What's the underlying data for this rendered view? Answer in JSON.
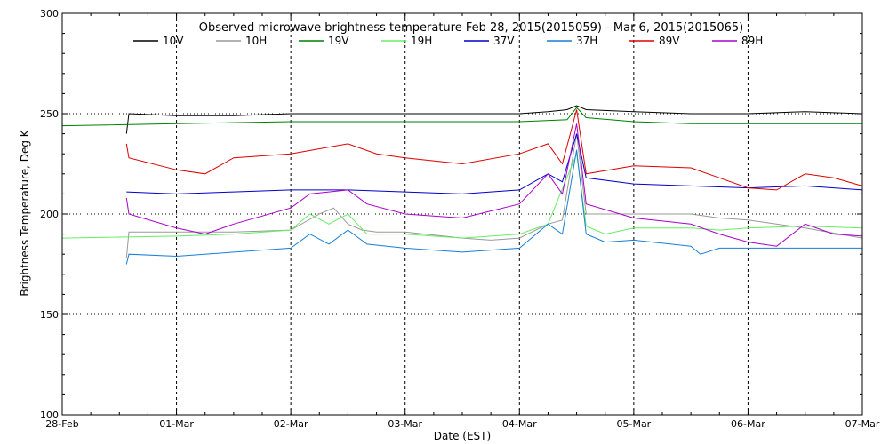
{
  "chart_data": {
    "type": "line",
    "title": "Observed microwave brightness temperature Feb 28, 2015(2015059) - Mar  6, 2015(2015065)",
    "xlabel": "Date (EST)",
    "ylabel": "Brightness Temperature, Deg K",
    "xlim": [
      "2015-02-28",
      "2015-03-07"
    ],
    "ylim": [
      100,
      300
    ],
    "x_ticks": [
      {
        "date": "2015-02-28",
        "label": "28-Feb"
      },
      {
        "date": "2015-03-01",
        "label": "01-Mar"
      },
      {
        "date": "2015-03-02",
        "label": "02-Mar"
      },
      {
        "date": "2015-03-03",
        "label": "03-Mar"
      },
      {
        "date": "2015-03-04",
        "label": "04-Mar"
      },
      {
        "date": "2015-03-05",
        "label": "05-Mar"
      },
      {
        "date": "2015-03-06",
        "label": "06-Mar"
      },
      {
        "date": "2015-03-07",
        "label": "07-Mar"
      }
    ],
    "y_ticks": [
      100,
      150,
      200,
      250,
      300
    ],
    "grid": "dotted",
    "legend_position": "top",
    "series": [
      {
        "name": "10V",
        "color": "#000000",
        "points": [
          [
            "2015-02-28T13:30",
            240
          ],
          [
            "2015-02-28T14:00",
            250
          ],
          [
            "2015-03-01T00:00",
            249
          ],
          [
            "2015-03-01T12:00",
            249
          ],
          [
            "2015-03-02T00:00",
            250
          ],
          [
            "2015-03-02T12:00",
            250
          ],
          [
            "2015-03-03T00:00",
            250
          ],
          [
            "2015-03-03T12:00",
            250
          ],
          [
            "2015-03-04T00:00",
            250
          ],
          [
            "2015-03-04T06:00",
            251
          ],
          [
            "2015-03-04T10:00",
            252
          ],
          [
            "2015-03-04T12:00",
            254
          ],
          [
            "2015-03-04T14:00",
            252
          ],
          [
            "2015-03-05T00:00",
            251
          ],
          [
            "2015-03-05T12:00",
            250
          ],
          [
            "2015-03-06T00:00",
            250
          ],
          [
            "2015-03-06T12:00",
            251
          ],
          [
            "2015-03-07T00:00",
            250
          ]
        ]
      },
      {
        "name": "10H",
        "color": "#999999",
        "points": [
          [
            "2015-02-28T13:30",
            178
          ],
          [
            "2015-02-28T14:00",
            191
          ],
          [
            "2015-03-01T00:00",
            191
          ],
          [
            "2015-03-01T12:00",
            191
          ],
          [
            "2015-03-02T00:00",
            192
          ],
          [
            "2015-03-02T03:00",
            196
          ],
          [
            "2015-03-02T06:00",
            200
          ],
          [
            "2015-03-02T09:00",
            203
          ],
          [
            "2015-03-02T12:00",
            195
          ],
          [
            "2015-03-02T15:00",
            192
          ],
          [
            "2015-03-02T18:00",
            191
          ],
          [
            "2015-03-03T00:00",
            191
          ],
          [
            "2015-03-03T12:00",
            188
          ],
          [
            "2015-03-03T18:00",
            187
          ],
          [
            "2015-03-04T00:00",
            188
          ],
          [
            "2015-03-04T06:00",
            195
          ],
          [
            "2015-03-04T09:00",
            197
          ],
          [
            "2015-03-04T12:00",
            240
          ],
          [
            "2015-03-04T14:00",
            200
          ],
          [
            "2015-03-04T18:00",
            200
          ],
          [
            "2015-03-05T00:00",
            200
          ],
          [
            "2015-03-05T12:00",
            200
          ],
          [
            "2015-03-05T18:00",
            198
          ],
          [
            "2015-03-06T00:00",
            197
          ],
          [
            "2015-03-06T12:00",
            193
          ],
          [
            "2015-03-07T00:00",
            188
          ]
        ]
      },
      {
        "name": "19V",
        "color": "#008000",
        "points": [
          [
            "2015-02-28T00:00",
            244
          ],
          [
            "2015-03-01T00:00",
            245
          ],
          [
            "2015-03-02T00:00",
            246
          ],
          [
            "2015-03-03T00:00",
            246
          ],
          [
            "2015-03-04T00:00",
            246
          ],
          [
            "2015-03-04T10:00",
            247
          ],
          [
            "2015-03-04T12:00",
            253
          ],
          [
            "2015-03-04T14:00",
            248
          ],
          [
            "2015-03-05T00:00",
            246
          ],
          [
            "2015-03-05T12:00",
            245
          ],
          [
            "2015-03-06T00:00",
            245
          ],
          [
            "2015-03-07T00:00",
            245
          ]
        ]
      },
      {
        "name": "19H",
        "color": "#66ee66",
        "points": [
          [
            "2015-02-28T00:00",
            188
          ],
          [
            "2015-03-01T00:00",
            189
          ],
          [
            "2015-03-01T12:00",
            190
          ],
          [
            "2015-03-02T00:00",
            192
          ],
          [
            "2015-03-02T04:00",
            200
          ],
          [
            "2015-03-02T08:00",
            195
          ],
          [
            "2015-03-02T12:00",
            200
          ],
          [
            "2015-03-02T16:00",
            190
          ],
          [
            "2015-03-03T00:00",
            190
          ],
          [
            "2015-03-03T12:00",
            188
          ],
          [
            "2015-03-04T00:00",
            190
          ],
          [
            "2015-03-04T06:00",
            195
          ],
          [
            "2015-03-04T12:00",
            230
          ],
          [
            "2015-03-04T14:00",
            194
          ],
          [
            "2015-03-04T18:00",
            190
          ],
          [
            "2015-03-05T00:00",
            193
          ],
          [
            "2015-03-05T12:00",
            193
          ],
          [
            "2015-03-05T18:00",
            192
          ],
          [
            "2015-03-06T00:00",
            193
          ],
          [
            "2015-03-06T12:00",
            194
          ],
          [
            "2015-03-07T00:00",
            193
          ]
        ]
      },
      {
        "name": "37V",
        "color": "#0000cc",
        "points": [
          [
            "2015-02-28T13:30",
            211
          ],
          [
            "2015-03-01T00:00",
            210
          ],
          [
            "2015-03-01T12:00",
            211
          ],
          [
            "2015-03-02T00:00",
            212
          ],
          [
            "2015-03-02T12:00",
            212
          ],
          [
            "2015-03-03T00:00",
            211
          ],
          [
            "2015-03-03T12:00",
            210
          ],
          [
            "2015-03-04T00:00",
            212
          ],
          [
            "2015-03-04T06:00",
            220
          ],
          [
            "2015-03-04T09:00",
            216
          ],
          [
            "2015-03-04T12:00",
            240
          ],
          [
            "2015-03-04T14:00",
            218
          ],
          [
            "2015-03-05T00:00",
            215
          ],
          [
            "2015-03-05T12:00",
            214
          ],
          [
            "2015-03-06T00:00",
            213
          ],
          [
            "2015-03-06T12:00",
            214
          ],
          [
            "2015-03-07T00:00",
            212
          ]
        ]
      },
      {
        "name": "37H",
        "color": "#1a7fd6",
        "points": [
          [
            "2015-02-28T13:30",
            175
          ],
          [
            "2015-02-28T14:00",
            180
          ],
          [
            "2015-03-01T00:00",
            179
          ],
          [
            "2015-03-01T12:00",
            181
          ],
          [
            "2015-03-02T00:00",
            183
          ],
          [
            "2015-03-02T04:00",
            190
          ],
          [
            "2015-03-02T08:00",
            185
          ],
          [
            "2015-03-02T12:00",
            192
          ],
          [
            "2015-03-02T16:00",
            185
          ],
          [
            "2015-03-03T00:00",
            183
          ],
          [
            "2015-03-03T12:00",
            181
          ],
          [
            "2015-03-04T00:00",
            183
          ],
          [
            "2015-03-04T06:00",
            195
          ],
          [
            "2015-03-04T09:00",
            190
          ],
          [
            "2015-03-04T12:00",
            232
          ],
          [
            "2015-03-04T14:00",
            190
          ],
          [
            "2015-03-04T18:00",
            186
          ],
          [
            "2015-03-05T00:00",
            187
          ],
          [
            "2015-03-05T12:00",
            184
          ],
          [
            "2015-03-05T14:00",
            180
          ],
          [
            "2015-03-05T18:00",
            183
          ],
          [
            "2015-03-06T00:00",
            183
          ],
          [
            "2015-03-06T12:00",
            183
          ],
          [
            "2015-03-07T00:00",
            183
          ]
        ]
      },
      {
        "name": "89V",
        "color": "#dd0000",
        "points": [
          [
            "2015-02-28T13:30",
            235
          ],
          [
            "2015-02-28T14:00",
            228
          ],
          [
            "2015-03-01T00:00",
            222
          ],
          [
            "2015-03-01T06:00",
            220
          ],
          [
            "2015-03-01T12:00",
            228
          ],
          [
            "2015-03-02T00:00",
            230
          ],
          [
            "2015-03-02T12:00",
            235
          ],
          [
            "2015-03-02T18:00",
            230
          ],
          [
            "2015-03-03T00:00",
            228
          ],
          [
            "2015-03-03T12:00",
            225
          ],
          [
            "2015-03-04T00:00",
            230
          ],
          [
            "2015-03-04T06:00",
            235
          ],
          [
            "2015-03-04T09:00",
            225
          ],
          [
            "2015-03-04T12:00",
            252
          ],
          [
            "2015-03-04T14:00",
            220
          ],
          [
            "2015-03-05T00:00",
            224
          ],
          [
            "2015-03-05T12:00",
            223
          ],
          [
            "2015-03-05T18:00",
            218
          ],
          [
            "2015-03-06T00:00",
            213
          ],
          [
            "2015-03-06T06:00",
            212
          ],
          [
            "2015-03-06T12:00",
            220
          ],
          [
            "2015-03-06T18:00",
            218
          ],
          [
            "2015-03-07T00:00",
            214
          ]
        ]
      },
      {
        "name": "89H",
        "color": "#aa00cc",
        "points": [
          [
            "2015-02-28T13:30",
            208
          ],
          [
            "2015-02-28T14:00",
            200
          ],
          [
            "2015-03-01T00:00",
            193
          ],
          [
            "2015-03-01T06:00",
            190
          ],
          [
            "2015-03-01T12:00",
            195
          ],
          [
            "2015-03-02T00:00",
            203
          ],
          [
            "2015-03-02T04:00",
            210
          ],
          [
            "2015-03-02T12:00",
            212
          ],
          [
            "2015-03-02T16:00",
            205
          ],
          [
            "2015-03-03T00:00",
            200
          ],
          [
            "2015-03-03T12:00",
            198
          ],
          [
            "2015-03-04T00:00",
            205
          ],
          [
            "2015-03-04T06:00",
            220
          ],
          [
            "2015-03-04T09:00",
            210
          ],
          [
            "2015-03-04T12:00",
            245
          ],
          [
            "2015-03-04T14:00",
            205
          ],
          [
            "2015-03-05T00:00",
            198
          ],
          [
            "2015-03-05T12:00",
            195
          ],
          [
            "2015-03-05T18:00",
            190
          ],
          [
            "2015-03-06T00:00",
            186
          ],
          [
            "2015-03-06T06:00",
            184
          ],
          [
            "2015-03-06T12:00",
            195
          ],
          [
            "2015-03-06T18:00",
            190
          ],
          [
            "2015-03-07T00:00",
            189
          ]
        ]
      }
    ]
  }
}
